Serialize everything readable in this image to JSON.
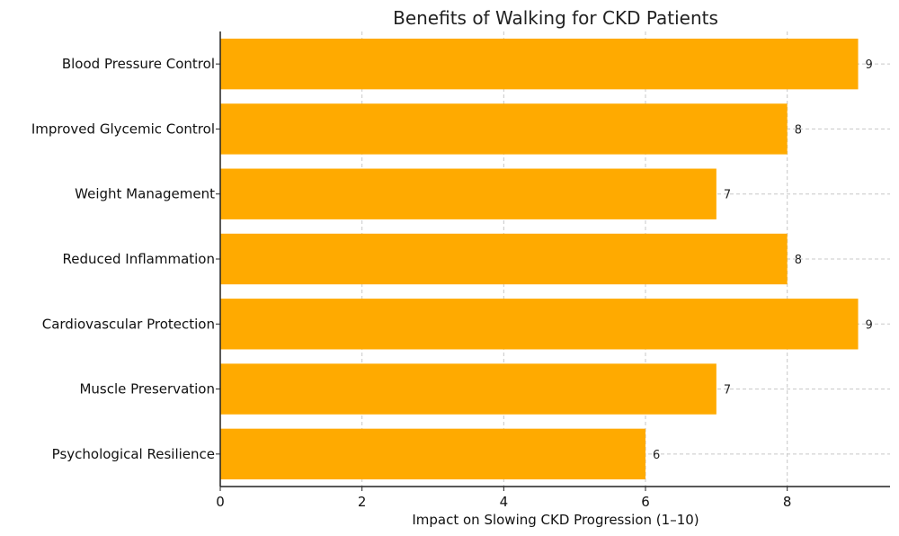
{
  "chart_data": {
    "type": "bar",
    "orientation": "horizontal",
    "title": "Benefits of Walking for CKD Patients",
    "xlabel": "Impact on Slowing CKD Progression (1–10)",
    "ylabel": "",
    "categories": [
      "Blood Pressure Control",
      "Improved Glycemic Control",
      "Weight Management",
      "Reduced Inflammation",
      "Cardiovascular Protection",
      "Muscle Preservation",
      "Psychological Resilience"
    ],
    "values": [
      9,
      8,
      7,
      8,
      9,
      7,
      6
    ],
    "xlim": [
      0,
      9.45
    ],
    "xticks": [
      0,
      2,
      4,
      6,
      8
    ],
    "grid": true,
    "bar_color": "#FFAA00"
  }
}
